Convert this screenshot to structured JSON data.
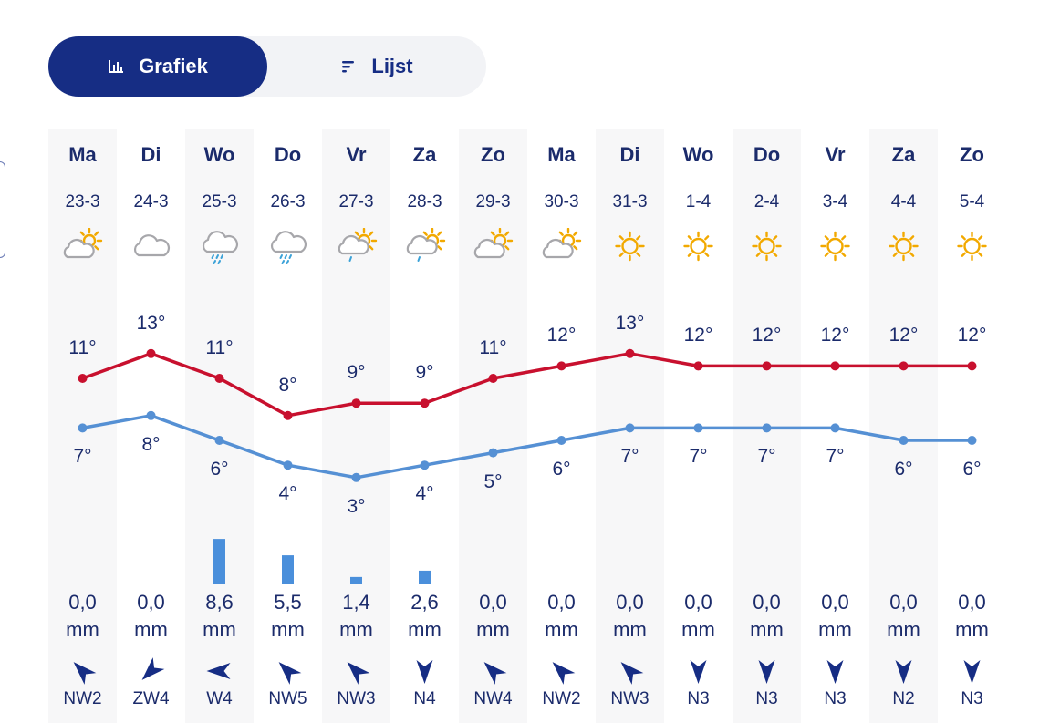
{
  "toggle": {
    "grafiek_label": "Grafiek",
    "lijst_label": "Lijst"
  },
  "days": [
    {
      "day": "Ma",
      "date": "23-3",
      "icon": "partly-cloudy-icon",
      "max": "11°",
      "min": "7°",
      "rain": "0,0",
      "unit": "mm",
      "wind_dir": "NW",
      "wind": "NW2"
    },
    {
      "day": "Di",
      "date": "24-3",
      "icon": "cloud-icon",
      "max": "13°",
      "min": "8°",
      "rain": "0,0",
      "unit": "mm",
      "wind_dir": "ZW",
      "wind": "ZW4"
    },
    {
      "day": "Wo",
      "date": "25-3",
      "icon": "rain-cloud-icon",
      "max": "11°",
      "min": "6°",
      "rain": "8,6",
      "unit": "mm",
      "wind_dir": "W",
      "wind": "W4"
    },
    {
      "day": "Do",
      "date": "26-3",
      "icon": "rain-cloud-icon",
      "max": "8°",
      "min": "4°",
      "rain": "5,5",
      "unit": "mm",
      "wind_dir": "NW",
      "wind": "NW5"
    },
    {
      "day": "Vr",
      "date": "27-3",
      "icon": "sun-shower-icon",
      "max": "9°",
      "min": "3°",
      "rain": "1,4",
      "unit": "mm",
      "wind_dir": "NW",
      "wind": "NW3"
    },
    {
      "day": "Za",
      "date": "28-3",
      "icon": "sun-shower-icon",
      "max": "9°",
      "min": "4°",
      "rain": "2,6",
      "unit": "mm",
      "wind_dir": "N",
      "wind": "N4"
    },
    {
      "day": "Zo",
      "date": "29-3",
      "icon": "partly-cloudy-icon",
      "max": "11°",
      "min": "5°",
      "rain": "0,0",
      "unit": "mm",
      "wind_dir": "NW",
      "wind": "NW4"
    },
    {
      "day": "Ma",
      "date": "30-3",
      "icon": "partly-cloudy-icon",
      "max": "12°",
      "min": "6°",
      "rain": "0,0",
      "unit": "mm",
      "wind_dir": "NW",
      "wind": "NW2"
    },
    {
      "day": "Di",
      "date": "31-3",
      "icon": "sun-icon",
      "max": "13°",
      "min": "7°",
      "rain": "0,0",
      "unit": "mm",
      "wind_dir": "NW",
      "wind": "NW3"
    },
    {
      "day": "Wo",
      "date": "1-4",
      "icon": "sun-icon",
      "max": "12°",
      "min": "7°",
      "rain": "0,0",
      "unit": "mm",
      "wind_dir": "N",
      "wind": "N3"
    },
    {
      "day": "Do",
      "date": "2-4",
      "icon": "sun-icon",
      "max": "12°",
      "min": "7°",
      "rain": "0,0",
      "unit": "mm",
      "wind_dir": "N",
      "wind": "N3"
    },
    {
      "day": "Vr",
      "date": "3-4",
      "icon": "sun-icon",
      "max": "12°",
      "min": "7°",
      "rain": "0,0",
      "unit": "mm",
      "wind_dir": "N",
      "wind": "N3"
    },
    {
      "day": "Za",
      "date": "4-4",
      "icon": "sun-icon",
      "max": "12°",
      "min": "6°",
      "rain": "0,0",
      "unit": "mm",
      "wind_dir": "N",
      "wind": "N2"
    },
    {
      "day": "Zo",
      "date": "5-4",
      "icon": "sun-icon",
      "max": "12°",
      "min": "6°",
      "rain": "0,0",
      "unit": "mm",
      "wind_dir": "N",
      "wind": "N3"
    }
  ],
  "colors": {
    "max_line": "#c8102e",
    "min_line": "#5590d4",
    "rain_bar": "#4a8fdb",
    "accent": "#162d84",
    "sun": "#f2a900",
    "cloud": "#a7a7ab",
    "rain_drop": "#3ba2d8"
  },
  "chart_data": {
    "type": "line",
    "categories": [
      "23-3",
      "24-3",
      "25-3",
      "26-3",
      "27-3",
      "28-3",
      "29-3",
      "30-3",
      "31-3",
      "1-4",
      "2-4",
      "3-4",
      "4-4",
      "5-4"
    ],
    "series": [
      {
        "values": [
          11,
          13,
          11,
          8,
          9,
          9,
          11,
          12,
          13,
          12,
          12,
          12,
          12,
          12
        ]
      },
      {
        "values": [
          7,
          8,
          6,
          4,
          3,
          4,
          5,
          6,
          7,
          7,
          7,
          7,
          6,
          6
        ]
      }
    ],
    "bars": {
      "values": [
        0.0,
        0.0,
        8.6,
        5.5,
        1.4,
        2.6,
        0.0,
        0.0,
        0.0,
        0.0,
        0.0,
        0.0,
        0.0,
        0.0
      ]
    }
  }
}
